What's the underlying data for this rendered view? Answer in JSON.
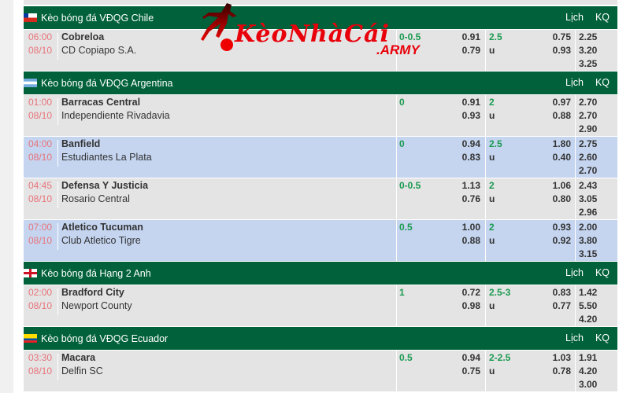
{
  "logo": {
    "brand": "KèoNhàCái",
    "suffix": ".ARMY"
  },
  "header_links": {
    "schedule": "Lịch",
    "results": "KQ"
  },
  "colors": {
    "header_green": "#00613a",
    "row_grey": "#e4e4e4",
    "row_blue": "#c5d5f0",
    "time_red": "#e8737a",
    "value_green": "#1a9a50"
  },
  "leagues": [
    {
      "title": "Kèo bóng đá VĐQG Chile",
      "flag": "chile-flag",
      "matches": [
        {
          "time": "06:00",
          "date": "08/10",
          "home": "Cobreloa",
          "away": "CD Copiapo S.A.",
          "hcap": "0-0.5",
          "hcap_home": "0.91",
          "hcap_away": "0.79",
          "ou": "2.5",
          "ou_u": "u",
          "ou_over": "0.75",
          "ou_under": "0.93",
          "x1": "2.25",
          "x2": "3.20",
          "x3": "3.25",
          "highlight": false
        }
      ]
    },
    {
      "title": "Kèo bóng đá VĐQG Argentina",
      "flag": "argentina-flag",
      "matches": [
        {
          "time": "01:00",
          "date": "08/10",
          "home": "Barracas Central",
          "away": "Independiente Rivadavia",
          "hcap": "0",
          "hcap_home": "0.91",
          "hcap_away": "0.93",
          "ou": "2",
          "ou_u": "u",
          "ou_over": "0.97",
          "ou_under": "0.88",
          "x1": "2.70",
          "x2": "2.70",
          "x3": "2.90",
          "highlight": false
        },
        {
          "time": "04:00",
          "date": "08/10",
          "home": "Banfield",
          "away": "Estudiantes La Plata",
          "hcap": "0",
          "hcap_home": "0.94",
          "hcap_away": "0.83",
          "ou": "2.5",
          "ou_u": "u",
          "ou_over": "1.80",
          "ou_under": "0.40",
          "x1": "2.75",
          "x2": "2.60",
          "x3": "2.70",
          "highlight": true
        },
        {
          "time": "04:45",
          "date": "08/10",
          "home": "Defensa Y Justicia",
          "away": "Rosario Central",
          "hcap": "0-0.5",
          "hcap_home": "1.13",
          "hcap_away": "0.76",
          "ou": "2",
          "ou_u": "u",
          "ou_over": "1.06",
          "ou_under": "0.80",
          "x1": "2.43",
          "x2": "3.05",
          "x3": "2.96",
          "highlight": false
        },
        {
          "time": "07:00",
          "date": "08/10",
          "home": "Atletico Tucuman",
          "away": "Club Atletico Tigre",
          "hcap": "0.5",
          "hcap_home": "1.00",
          "hcap_away": "0.88",
          "ou": "2",
          "ou_u": "u",
          "ou_over": "0.93",
          "ou_under": "0.92",
          "x1": "2.00",
          "x2": "3.80",
          "x3": "3.15",
          "highlight": true
        }
      ]
    },
    {
      "title": "Kèo bóng đá Hạng 2 Anh",
      "flag": "england-flag",
      "matches": [
        {
          "time": "02:00",
          "date": "08/10",
          "home": "Bradford City",
          "away": "Newport County",
          "hcap": "1",
          "hcap_home": "0.72",
          "hcap_away": "0.98",
          "ou": "2.5-3",
          "ou_u": "u",
          "ou_over": "0.83",
          "ou_under": "0.77",
          "x1": "1.42",
          "x2": "5.50",
          "x3": "4.20",
          "highlight": false
        }
      ]
    },
    {
      "title": "Kèo bóng đá VĐQG Ecuador",
      "flag": "ecuador-flag",
      "matches": [
        {
          "time": "03:30",
          "date": "08/10",
          "home": "Macara",
          "away": "Delfin SC",
          "hcap": "0.5",
          "hcap_home": "0.94",
          "hcap_away": "0.75",
          "ou": "2-2.5",
          "ou_u": "u",
          "ou_over": "1.03",
          "ou_under": "0.78",
          "x1": "1.91",
          "x2": "4.20",
          "x3": "3.00",
          "highlight": false
        }
      ]
    }
  ]
}
